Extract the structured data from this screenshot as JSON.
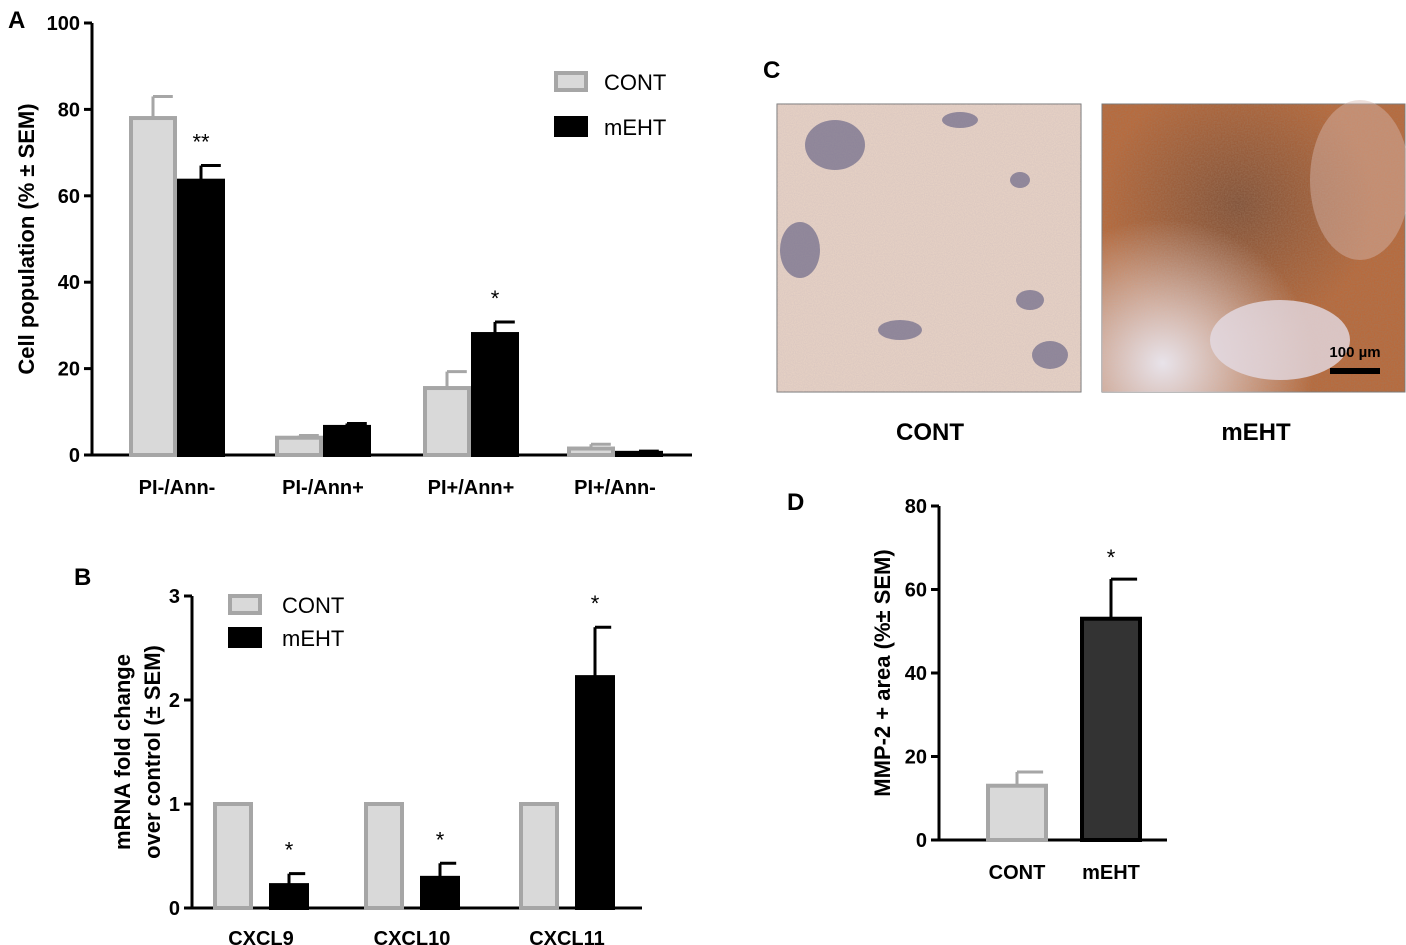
{
  "panels": {
    "a": {
      "letter": "A"
    },
    "b": {
      "letter": "B"
    },
    "c": {
      "letter": "C",
      "images": [
        {
          "caption": "CONT"
        },
        {
          "caption": "mEHT",
          "scale_bar": "100 µm"
        }
      ]
    },
    "d": {
      "letter": "D"
    }
  },
  "chart_data": [
    {
      "id": "a",
      "type": "bar",
      "ylabel": "Cell population (% ± SEM)",
      "xlabel": "",
      "ylim": [
        0,
        100
      ],
      "yticks": [
        "0",
        "20",
        "40",
        "60",
        "80",
        "100"
      ],
      "categories": [
        "PI-/Ann-",
        "PI-/Ann+",
        "PI+/Ann+",
        "PI+/Ann-"
      ],
      "series": [
        {
          "name": "CONT",
          "color": "#d9d9d9",
          "edge": "#a6a6a6",
          "values": [
            78,
            4,
            15.5,
            1.5
          ],
          "errors": [
            5,
            0.5,
            3.8,
            1
          ]
        },
        {
          "name": "mEHT",
          "color": "#000000",
          "edge": "#000000",
          "values": [
            63.5,
            6.5,
            28,
            0.5
          ],
          "errors": [
            3.5,
            0.8,
            2.8,
            0.4
          ]
        }
      ],
      "annotations": [
        "**",
        "",
        "*",
        ""
      ],
      "legend": "top-right"
    },
    {
      "id": "b",
      "type": "bar",
      "ylabel": "mRNA fold change over control (± SEM)",
      "ylabel_lines": [
        "mRNA fold change",
        "over control (± SEM)"
      ],
      "xlabel": "",
      "ylim": [
        0,
        3
      ],
      "yticks": [
        "0",
        "1",
        "2",
        "3"
      ],
      "categories": [
        "CXCL9",
        "CXCL10",
        "CXCL11"
      ],
      "series": [
        {
          "name": "CONT",
          "color": "#d9d9d9",
          "edge": "#a6a6a6",
          "values": [
            1,
            1,
            1
          ],
          "errors": [
            0,
            0,
            0
          ]
        },
        {
          "name": "mEHT",
          "color": "#000000",
          "edge": "#000000",
          "values": [
            0.22,
            0.29,
            2.22
          ],
          "errors": [
            0.11,
            0.14,
            0.48
          ]
        }
      ],
      "annotations": [
        "*",
        "*",
        "*"
      ],
      "legend": "top-left"
    },
    {
      "id": "d",
      "type": "bar",
      "ylabel": "MMP-2 + area (%± SEM)",
      "xlabel": "",
      "ylim": [
        0,
        80
      ],
      "yticks": [
        "0",
        "20",
        "40",
        "60",
        "80"
      ],
      "categories": [
        "CONT",
        "mEHT"
      ],
      "values": [
        13,
        53
      ],
      "errors": [
        3.3,
        9.5
      ],
      "colors": [
        "#d9d9d9",
        "#333333"
      ],
      "edges": [
        "#a6a6a6",
        "#000000"
      ],
      "annotations": [
        "",
        "*"
      ]
    }
  ]
}
